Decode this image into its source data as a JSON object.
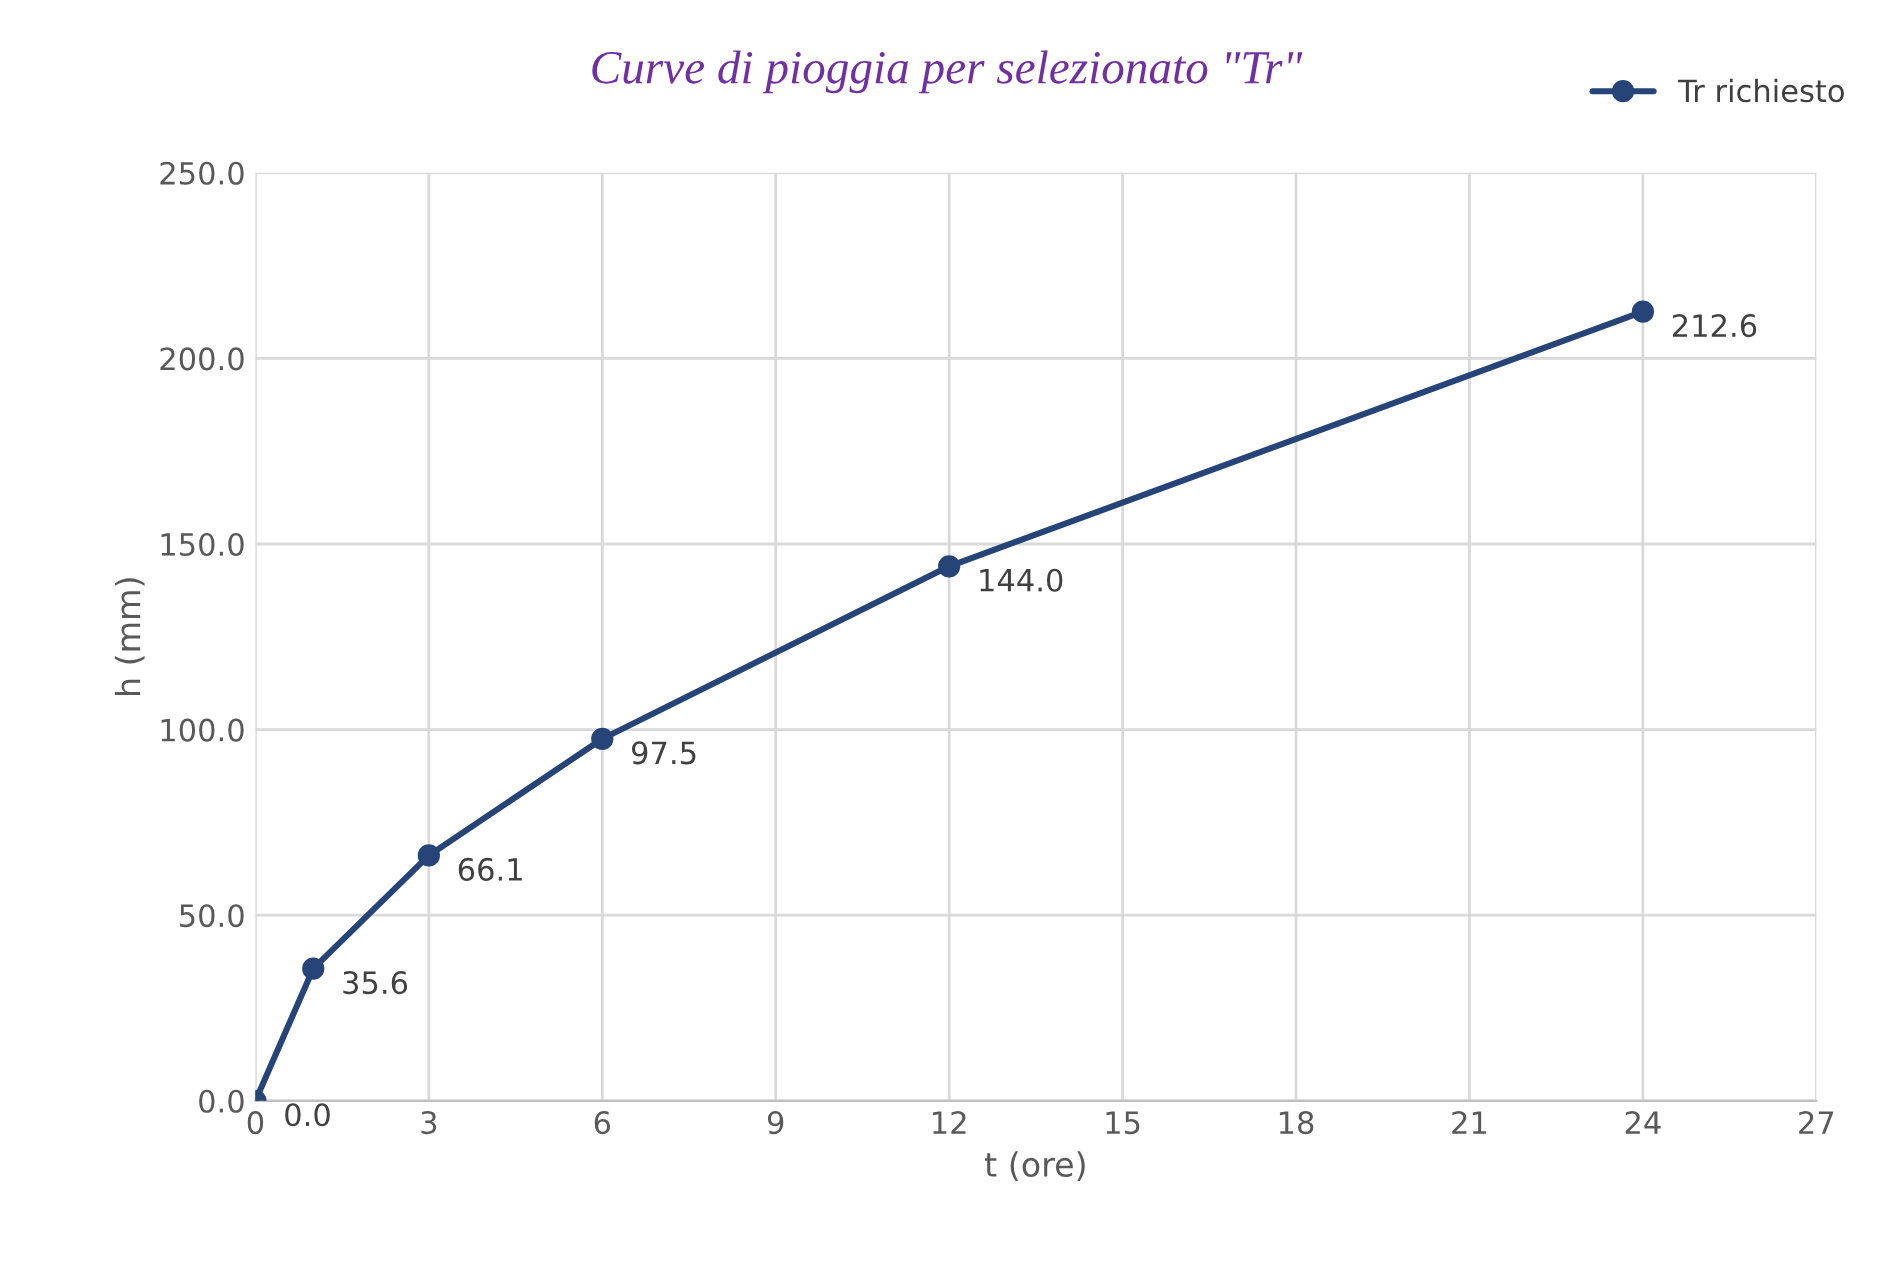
{
  "chart_data": {
    "type": "line",
    "title": "Curve di pioggia per selezionato \"Tr\"",
    "xlabel": "t (ore)",
    "ylabel": "h (mm)",
    "x": [
      0,
      1,
      3,
      6,
      12,
      24
    ],
    "series": [
      {
        "name": "Tr richiesto",
        "color": "#264478",
        "values": [
          0.0,
          35.6,
          66.1,
          97.5,
          144.0,
          212.6
        ],
        "value_labels": [
          "0.0",
          "35.6",
          "66.1",
          "97.5",
          "144.0",
          "212.6"
        ]
      }
    ],
    "xlim": [
      0,
      27
    ],
    "xticks": [
      0,
      3,
      6,
      9,
      12,
      15,
      18,
      21,
      24,
      27
    ],
    "ylim": [
      0,
      250
    ],
    "yticks": [
      {
        "value": 0,
        "label": "0.0"
      },
      {
        "value": 50,
        "label": "50.0"
      },
      {
        "value": 100,
        "label": "100.0"
      },
      {
        "value": 150,
        "label": "150.0"
      },
      {
        "value": 200,
        "label": "200.0"
      },
      {
        "value": 250,
        "label": "250.0"
      }
    ],
    "grid": true,
    "legend": "top right",
    "marker": "circle",
    "line_style": "solid"
  }
}
